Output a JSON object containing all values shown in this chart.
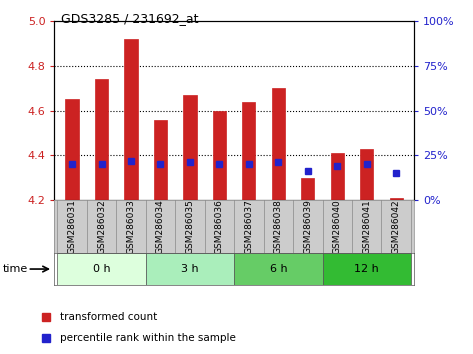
{
  "title": "GDS3285 / 231692_at",
  "samples": [
    "GSM286031",
    "GSM286032",
    "GSM286033",
    "GSM286034",
    "GSM286035",
    "GSM286036",
    "GSM286037",
    "GSM286038",
    "GSM286039",
    "GSM286040",
    "GSM286041",
    "GSM286042"
  ],
  "transformed_count": [
    4.65,
    4.74,
    4.92,
    4.56,
    4.67,
    4.6,
    4.64,
    4.7,
    4.3,
    4.41,
    4.43,
    4.21
  ],
  "percentile_rank": [
    20,
    20,
    22,
    20,
    21,
    20,
    20,
    21,
    16,
    19,
    20,
    15
  ],
  "bar_bottom": 4.2,
  "ylim_left": [
    4.2,
    5.0
  ],
  "ylim_right": [
    0,
    100
  ],
  "yticks_left": [
    4.2,
    4.4,
    4.6,
    4.8,
    5.0
  ],
  "yticks_right": [
    0,
    25,
    50,
    75,
    100
  ],
  "bar_color": "#cc2222",
  "percentile_color": "#2222cc",
  "bar_width": 0.45,
  "tick_label_color": "#cc2222",
  "right_tick_color": "#2222cc",
  "legend_labels": [
    "transformed count",
    "percentile rank within the sample"
  ],
  "legend_colors": [
    "#cc2222",
    "#2222cc"
  ],
  "percentile_marker_size": 5,
  "sample_bg_color": "#cccccc",
  "time_group_colors": [
    "#ddffdd",
    "#aaeebb",
    "#66cc66",
    "#33bb33"
  ],
  "time_group_labels": [
    "0 h",
    "3 h",
    "6 h",
    "12 h"
  ],
  "time_group_starts": [
    0,
    3,
    6,
    9
  ],
  "time_group_ends": [
    3,
    6,
    9,
    12
  ]
}
